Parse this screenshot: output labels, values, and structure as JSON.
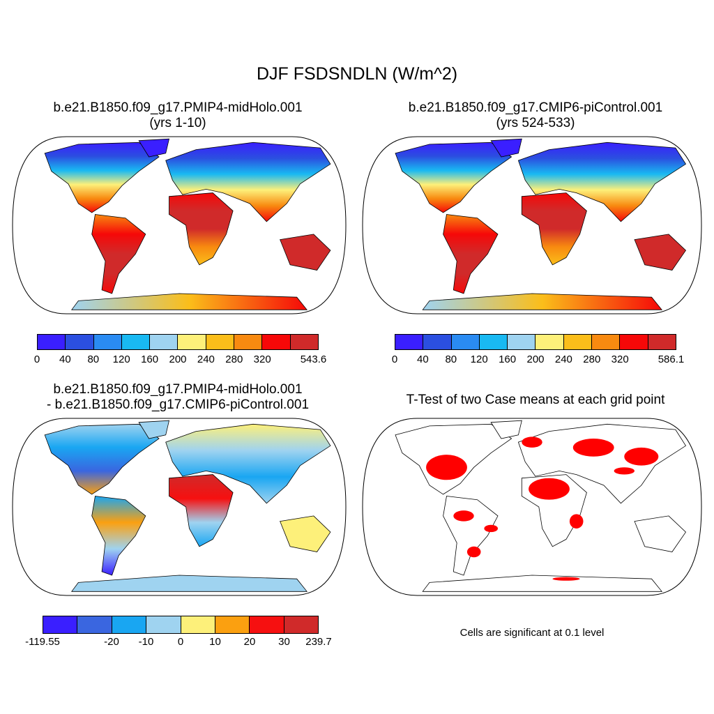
{
  "figure": {
    "title": "DJF FSDSNDLN (W/m^2)"
  },
  "panels": {
    "top_left": {
      "title_line1": "b.e21.B1850.f09_g17.PMIP4-midHolo.001",
      "title_line2": "(yrs 1-10)",
      "colorbar_labels": [
        "0",
        "40",
        "80",
        "120",
        "160",
        "200",
        "240",
        "280",
        "320",
        "543.6"
      ]
    },
    "top_right": {
      "title_line1": "b.e21.B1850.f09_g17.CMIP6-piControl.001",
      "title_line2": "(yrs 524-533)",
      "colorbar_labels": [
        "0",
        "40",
        "80",
        "120",
        "160",
        "200",
        "240",
        "280",
        "320",
        "586.1"
      ]
    },
    "bottom_left": {
      "title_line1": "b.e21.B1850.f09_g17.PMIP4-midHolo.001",
      "title_line2": "- b.e21.B1850.f09_g17.CMIP6-piControl.001",
      "colorbar_labels": [
        "-119.55",
        "-20",
        "-10",
        "0",
        "10",
        "20",
        "30",
        "239.7"
      ]
    },
    "bottom_right": {
      "title_line1": "T-Test of two Case means at each grid point",
      "note": "Cells are significant at 0.1 level"
    }
  },
  "colors": {
    "abs_scale": [
      "#3a1fff",
      "#2b4fe0",
      "#2a8bf2",
      "#19b9f2",
      "#9fd3f0",
      "#fdf07a",
      "#fbbe1a",
      "#f88a10",
      "#f60808",
      "#d02a2a"
    ],
    "diff_scale": [
      "#3a1fff",
      "#3a66e0",
      "#19a6f2",
      "#9fd3f0",
      "#fdf07a",
      "#fba010",
      "#f61010",
      "#d02a2a"
    ],
    "significant": "#ff0000"
  }
}
